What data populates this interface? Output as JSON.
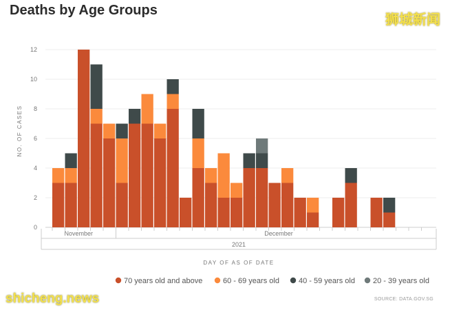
{
  "header": {
    "title": "Deaths by Age Groups"
  },
  "watermarks": {
    "top": "狮城新闻",
    "bottom": "shicheng.news"
  },
  "source": "SOURCE: DATA.GOV.SG",
  "chart_data": {
    "type": "bar",
    "stacked": true,
    "title": "Deaths by Age Groups",
    "ylabel": "NO. OF CASES",
    "xlabel": "DAY OF AS OF DATE",
    "ylim": [
      0,
      12
    ],
    "yticks": [
      0,
      2,
      4,
      6,
      8,
      10,
      12
    ],
    "grid": true,
    "legend_position": "bottom",
    "x_group_labels": [
      {
        "label": "November",
        "from": 0,
        "to": 5
      },
      {
        "label": "December",
        "from": 5,
        "to": 28
      }
    ],
    "x_year_label": "2021",
    "categories_count": 28,
    "series": [
      {
        "name": "70 years old and above",
        "color": "#c9502a",
        "values": [
          3,
          3,
          12,
          7,
          6,
          3,
          7,
          7,
          6,
          8,
          2,
          4,
          3,
          2,
          2,
          4,
          4,
          3,
          3,
          2,
          1,
          0,
          2,
          3,
          0,
          2,
          1,
          0
        ]
      },
      {
        "name": "60 - 69 years old",
        "color": "#fb8a3c",
        "values": [
          1,
          1,
          0,
          1,
          1,
          3,
          0,
          2,
          1,
          1,
          0,
          2,
          1,
          3,
          1,
          0,
          0,
          0,
          1,
          0,
          1,
          0,
          0,
          0,
          0,
          0,
          0,
          0
        ]
      },
      {
        "name": "40 - 59 years old",
        "color": "#3f4a4a",
        "values": [
          0,
          1,
          0,
          3,
          0,
          1,
          1,
          0,
          0,
          1,
          0,
          2,
          0,
          0,
          0,
          1,
          1,
          0,
          0,
          0,
          0,
          0,
          0,
          1,
          0,
          0,
          1,
          0
        ]
      },
      {
        "name": "20 - 39 years old",
        "color": "#6f7a7a",
        "values": [
          0,
          0,
          0,
          0,
          0,
          0,
          0,
          0,
          0,
          0,
          0,
          0,
          0,
          0,
          0,
          0,
          1,
          0,
          0,
          0,
          0,
          0,
          0,
          0,
          0,
          0,
          0,
          0
        ]
      }
    ]
  }
}
